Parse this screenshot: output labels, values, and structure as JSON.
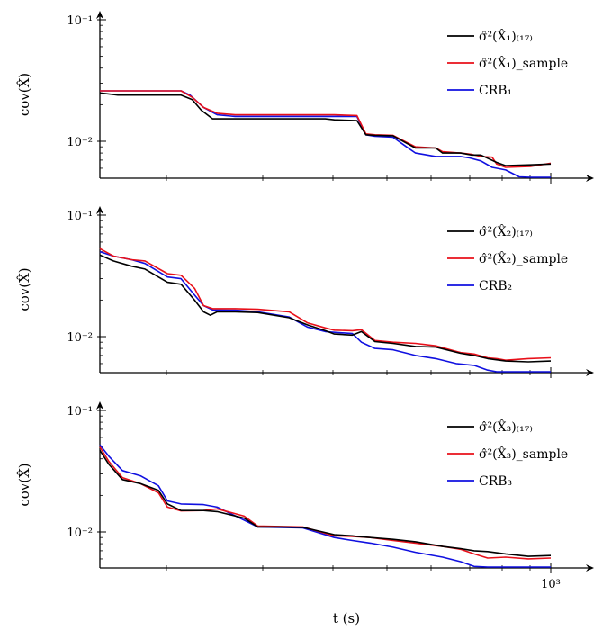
{
  "colors": {
    "black": "#000000",
    "red": "#e8101a",
    "blue": "#1010e0"
  },
  "chart_data": [
    {
      "type": "line",
      "xlabel": "",
      "ylabel": "cov(X̂)",
      "yscale": "log",
      "ylim": [
        0.004,
        0.1
      ],
      "xlim": [
        0,
        1000
      ],
      "y_ticks": [
        "10⁻¹",
        "10⁻²"
      ],
      "x_ticks": [],
      "legend_position": "top-right",
      "series": [
        {
          "name": "σ̂²(X̂₁)₍₁₇₎",
          "color": "black",
          "x": [
            0,
            40,
            100,
            180,
            205,
            225,
            250,
            300,
            350,
            480,
            500,
            520,
            570,
            590,
            610,
            650,
            700,
            745,
            760,
            800,
            825,
            845,
            880,
            900,
            955,
            1000
          ],
          "y": [
            0.025,
            0.024,
            0.024,
            0.024,
            0.022,
            0.018,
            0.0153,
            0.0153,
            0.0153,
            0.0153,
            0.0153,
            0.015,
            0.0148,
            0.0113,
            0.0112,
            0.0111,
            0.0088,
            0.0088,
            0.008,
            0.008,
            0.0077,
            0.0077,
            0.0067,
            0.0063,
            0.0064,
            0.0065
          ]
        },
        {
          "name": "σ̂²(X̂₁)_sample",
          "color": "red",
          "x": [
            0,
            100,
            180,
            205,
            230,
            260,
            300,
            400,
            480,
            490,
            520,
            570,
            590,
            610,
            650,
            700,
            745,
            760,
            800,
            825,
            845,
            870,
            880,
            900,
            955,
            1000
          ],
          "y": [
            0.026,
            0.026,
            0.026,
            0.023,
            0.019,
            0.017,
            0.0165,
            0.0165,
            0.0165,
            0.0165,
            0.0165,
            0.0163,
            0.0115,
            0.0113,
            0.0112,
            0.009,
            0.0088,
            0.0082,
            0.008,
            0.0078,
            0.0075,
            0.0074,
            0.0065,
            0.0061,
            0.0062,
            0.0066
          ]
        },
        {
          "name": "CRB₁",
          "color": "blue",
          "x": [
            0,
            180,
            200,
            230,
            260,
            300,
            480,
            500,
            520,
            570,
            590,
            610,
            650,
            680,
            700,
            745,
            800,
            820,
            845,
            870,
            900,
            930,
            955,
            980,
            1000
          ],
          "y": [
            0.026,
            0.026,
            0.024,
            0.019,
            0.0165,
            0.016,
            0.016,
            0.016,
            0.016,
            0.016,
            0.0113,
            0.011,
            0.0108,
            0.009,
            0.008,
            0.0075,
            0.0075,
            0.0073,
            0.0069,
            0.0061,
            0.0058,
            0.0051,
            0.005,
            0.0049,
            0.0044
          ]
        }
      ]
    },
    {
      "type": "line",
      "xlabel": "",
      "ylabel": "cov(X̂)",
      "yscale": "log",
      "ylim": [
        0.004,
        0.1
      ],
      "xlim": [
        0,
        1000
      ],
      "y_ticks": [
        "10⁻¹",
        "10⁻²"
      ],
      "x_ticks": [],
      "legend_position": "top-right",
      "series": [
        {
          "name": "σ̂²(X̂₂)₍₁₇₎",
          "color": "black",
          "x": [
            0,
            30,
            70,
            100,
            150,
            180,
            210,
            230,
            245,
            260,
            300,
            350,
            420,
            460,
            500,
            520,
            560,
            580,
            610,
            650,
            700,
            745,
            800,
            830,
            860,
            900,
            950,
            1000
          ],
          "y": [
            0.047,
            0.042,
            0.038,
            0.036,
            0.028,
            0.027,
            0.02,
            0.016,
            0.015,
            0.016,
            0.016,
            0.0158,
            0.0143,
            0.0125,
            0.0112,
            0.0105,
            0.0103,
            0.011,
            0.0091,
            0.0088,
            0.0083,
            0.0082,
            0.0073,
            0.007,
            0.0066,
            0.0063,
            0.0062,
            0.0063
          ]
        },
        {
          "name": "σ̂²(X̂₂)_sample",
          "color": "red",
          "x": [
            0,
            30,
            70,
            100,
            150,
            180,
            210,
            230,
            250,
            300,
            350,
            420,
            460,
            500,
            520,
            560,
            580,
            610,
            650,
            700,
            745,
            800,
            830,
            860,
            880,
            900,
            950,
            1000
          ],
          "y": [
            0.053,
            0.046,
            0.043,
            0.042,
            0.033,
            0.032,
            0.025,
            0.018,
            0.017,
            0.017,
            0.0168,
            0.016,
            0.013,
            0.0118,
            0.0113,
            0.0112,
            0.0114,
            0.0093,
            0.009,
            0.0088,
            0.0084,
            0.0074,
            0.0072,
            0.0067,
            0.0066,
            0.0064,
            0.0066,
            0.0067
          ]
        },
        {
          "name": "CRB₂",
          "color": "blue",
          "x": [
            0,
            30,
            70,
            100,
            150,
            180,
            210,
            230,
            250,
            300,
            350,
            420,
            460,
            500,
            560,
            580,
            610,
            650,
            700,
            745,
            790,
            830,
            860,
            880,
            900,
            940,
            960,
            1000
          ],
          "y": [
            0.05,
            0.046,
            0.043,
            0.04,
            0.031,
            0.03,
            0.022,
            0.018,
            0.0166,
            0.0165,
            0.016,
            0.0145,
            0.012,
            0.011,
            0.0106,
            0.009,
            0.008,
            0.0078,
            0.007,
            0.0066,
            0.006,
            0.0058,
            0.0053,
            0.005,
            0.0048,
            0.0045,
            0.0042,
            0.0041
          ]
        }
      ]
    },
    {
      "type": "line",
      "xlabel": "t (s)",
      "ylabel": "cov(X̂)",
      "yscale": "log",
      "ylim": [
        0.004,
        0.1
      ],
      "xlim": [
        0,
        1000
      ],
      "y_ticks": [
        "10⁻¹",
        "10⁻²"
      ],
      "x_ticks": [
        "10³"
      ],
      "legend_position": "top-right",
      "series": [
        {
          "name": "σ̂²(X̂₃)₍₁₇₎",
          "color": "black",
          "x": [
            0,
            20,
            50,
            90,
            130,
            150,
            180,
            230,
            260,
            320,
            350,
            400,
            450,
            520,
            560,
            570,
            600,
            650,
            700,
            760,
            800,
            830,
            860,
            900,
            950,
            1000
          ],
          "y": [
            0.047,
            0.036,
            0.027,
            0.025,
            0.022,
            0.017,
            0.015,
            0.015,
            0.0147,
            0.013,
            0.011,
            0.011,
            0.0109,
            0.0095,
            0.0093,
            0.0092,
            0.009,
            0.0087,
            0.0083,
            0.0076,
            0.0073,
            0.007,
            0.0069,
            0.0066,
            0.0063,
            0.0064
          ]
        },
        {
          "name": "σ̂²(X̂₃)_sample",
          "color": "red",
          "x": [
            0,
            20,
            50,
            90,
            130,
            150,
            180,
            230,
            260,
            320,
            350,
            400,
            450,
            520,
            560,
            600,
            650,
            700,
            760,
            800,
            830,
            860,
            900,
            950,
            1000
          ],
          "y": [
            0.05,
            0.038,
            0.028,
            0.025,
            0.021,
            0.016,
            0.0149,
            0.015,
            0.0155,
            0.0135,
            0.0112,
            0.0111,
            0.011,
            0.0093,
            0.0092,
            0.009,
            0.0085,
            0.0081,
            0.0076,
            0.0072,
            0.0066,
            0.0061,
            0.0062,
            0.006,
            0.0061
          ]
        },
        {
          "name": "CRB₃",
          "color": "blue",
          "x": [
            0,
            20,
            50,
            90,
            130,
            150,
            180,
            230,
            260,
            320,
            350,
            400,
            450,
            520,
            560,
            600,
            650,
            700,
            760,
            800,
            830,
            860,
            900,
            950,
            1000
          ],
          "y": [
            0.052,
            0.042,
            0.032,
            0.029,
            0.024,
            0.018,
            0.017,
            0.0168,
            0.016,
            0.0125,
            0.011,
            0.0109,
            0.0108,
            0.009,
            0.0085,
            0.0081,
            0.0075,
            0.0068,
            0.0062,
            0.0057,
            0.0052,
            0.005,
            0.0046,
            0.0043,
            0.004
          ]
        }
      ]
    }
  ]
}
